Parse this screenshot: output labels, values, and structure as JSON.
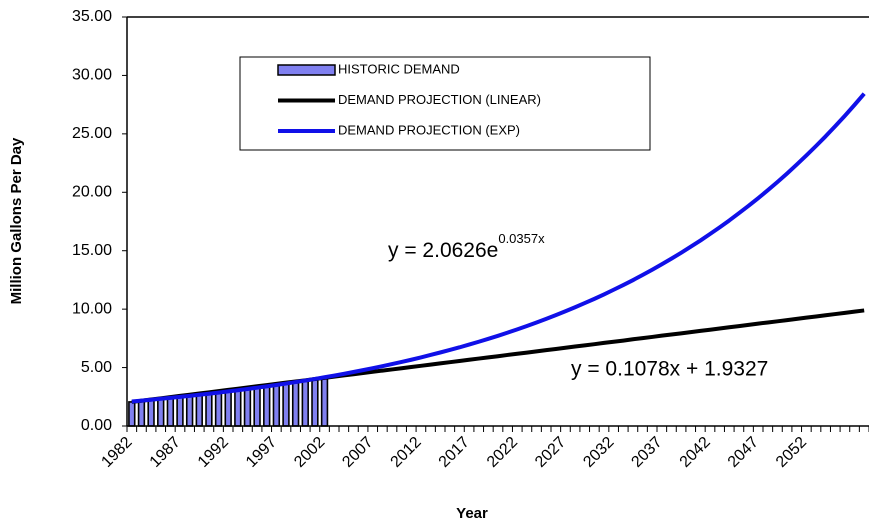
{
  "chart_data": {
    "type": "combo",
    "x_title": "Year",
    "y_title": "Million Gallons Per Day",
    "categories": [
      "1982",
      null,
      null,
      null,
      null,
      "1987",
      null,
      null,
      null,
      null,
      "1992",
      null,
      null,
      null,
      null,
      "1997",
      null,
      null,
      null,
      null,
      "2002",
      null,
      null,
      null,
      null,
      "2007",
      null,
      null,
      null,
      null,
      "2012",
      null,
      null,
      null,
      null,
      "2017",
      null,
      null,
      null,
      null,
      "2022",
      null,
      null,
      null,
      null,
      "2027",
      null,
      null,
      null,
      null,
      "2032",
      null,
      null,
      null,
      null,
      "2037",
      null,
      null,
      null,
      null,
      "2042",
      null,
      null,
      null,
      null,
      "2047",
      null,
      null,
      null,
      null,
      "2052",
      null,
      null,
      null,
      null,
      null,
      null
    ],
    "ylim": [
      0,
      35
    ],
    "yticks": [
      {
        "value": 0,
        "label": "0.00"
      },
      {
        "value": 5,
        "label": "5.00"
      },
      {
        "value": 10,
        "label": "10.00"
      },
      {
        "value": 15,
        "label": "15.00"
      },
      {
        "value": 20,
        "label": "20.00"
      },
      {
        "value": 25,
        "label": "25.00"
      },
      {
        "value": 30,
        "label": "30.00"
      },
      {
        "value": 35,
        "label": "35.00"
      }
    ],
    "grid": false,
    "legend": "top",
    "series": [
      {
        "name": "HISTORIC DEMAND",
        "type": "bar",
        "color": "#8080f0",
        "values": [
          2.06,
          2.15,
          2.22,
          2.3,
          2.38,
          2.46,
          2.55,
          2.63,
          2.72,
          2.82,
          2.91,
          3.01,
          3.12,
          3.22,
          3.33,
          3.45,
          3.57,
          3.69,
          3.82,
          3.95,
          4.15,
          null,
          null,
          null,
          null,
          null,
          null,
          null,
          null,
          null,
          null,
          null,
          null,
          null,
          null,
          null,
          null,
          null,
          null,
          null,
          null,
          null,
          null,
          null,
          null,
          null,
          null,
          null,
          null,
          null,
          null,
          null,
          null,
          null,
          null,
          null,
          null,
          null,
          null,
          null,
          null,
          null,
          null,
          null,
          null,
          null,
          null,
          null,
          null,
          null,
          null,
          null,
          null,
          null,
          null,
          null,
          null
        ]
      },
      {
        "name": "DEMAND PROJECTION (LINEAR)",
        "type": "line",
        "color": "#000000",
        "values": [
          2.06,
          2.16,
          2.27,
          2.37,
          2.47,
          2.58,
          2.68,
          2.78,
          2.88,
          2.99,
          3.09,
          3.19,
          3.3,
          3.4,
          3.5,
          3.61,
          3.71,
          3.81,
          3.91,
          4.02,
          4.12,
          4.22,
          4.33,
          4.43,
          4.53,
          4.64,
          4.74,
          4.84,
          4.94,
          5.05,
          5.15,
          5.25,
          5.36,
          5.46,
          5.56,
          5.67,
          5.77,
          5.87,
          5.97,
          6.08,
          6.18,
          6.28,
          6.39,
          6.49,
          6.59,
          6.7,
          6.8,
          6.9,
          7.0,
          7.11,
          7.21,
          7.31,
          7.42,
          7.52,
          7.62,
          7.73,
          7.83,
          7.93,
          8.03,
          8.14,
          8.24,
          8.34,
          8.45,
          8.55,
          8.65,
          8.76,
          8.86,
          8.96,
          9.06,
          9.17,
          9.27,
          9.37,
          9.48,
          9.58,
          9.68,
          9.79,
          9.89
        ]
      },
      {
        "name": "DEMAND PROJECTION (EXP)",
        "type": "line",
        "color": "#1010e8",
        "values": [
          2.1,
          2.17,
          2.25,
          2.33,
          2.41,
          2.49,
          2.58,
          2.67,
          2.76,
          2.86,
          2.96,
          3.06,
          3.17,
          3.28,
          3.39,
          3.51,
          3.63,
          3.76,
          3.89,
          4.03,
          4.17,
          4.31,
          4.46,
          4.62,
          4.78,
          4.95,
          5.12,
          5.3,
          5.48,
          5.67,
          5.87,
          6.08,
          6.29,
          6.51,
          6.73,
          6.97,
          7.21,
          7.46,
          7.72,
          7.99,
          8.27,
          8.56,
          8.86,
          9.17,
          9.49,
          9.82,
          10.16,
          10.52,
          10.88,
          11.26,
          11.66,
          12.06,
          12.48,
          12.92,
          13.37,
          13.84,
          14.32,
          14.82,
          15.34,
          15.87,
          16.43,
          17.0,
          17.59,
          18.21,
          18.84,
          19.5,
          20.18,
          20.88,
          21.61,
          22.37,
          23.15,
          23.96,
          24.79,
          25.66,
          26.55,
          27.48,
          28.44
        ]
      }
    ],
    "annotations": [
      {
        "text": "y = 2.0626e",
        "superscript": "0.0357x"
      },
      {
        "text": "y = 0.1078x + 1.9327"
      }
    ]
  }
}
